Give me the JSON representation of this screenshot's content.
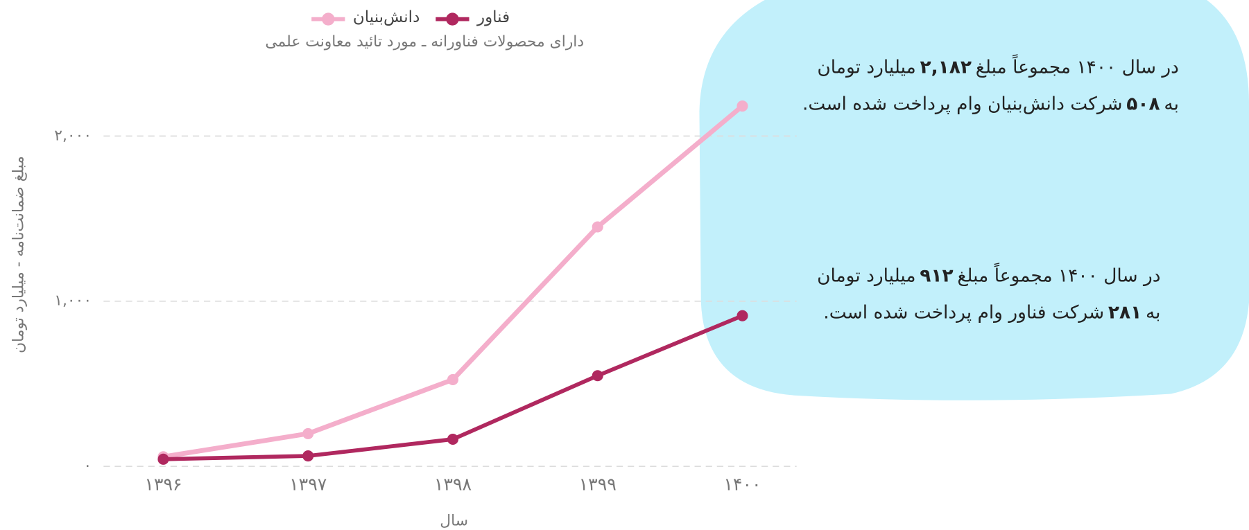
{
  "chart_data": {
    "type": "line",
    "subtitle": "دارای محصولات فناورانه ـ مورد تائید معاونت علمی",
    "xlabel": "سال",
    "ylabel": "مبلغ ضمانت‌نامه - میلیارد تومان",
    "categories": [
      "۱۳۹۶",
      "۱۳۹۷",
      "۱۳۹۸",
      "۱۳۹۹",
      "۱۴۰۰"
    ],
    "series": [
      {
        "name": "فناور",
        "color": "#b0285f",
        "values": [
          43,
          63,
          164,
          549,
          912
        ]
      },
      {
        "name": "دانش‌بنیان",
        "color": "#f4aecb",
        "values": [
          58,
          198,
          525,
          1450,
          2182
        ]
      }
    ],
    "ylim": [
      0,
      2200
    ],
    "yticks": [
      {
        "value": 0,
        "label": "۰"
      },
      {
        "value": 1000,
        "label": "۱,۰۰۰"
      },
      {
        "value": 2000,
        "label": "۲,۰۰۰"
      }
    ],
    "grid": true,
    "annotations": [
      {
        "lines": [
          {
            "before": "در سال ۱۴۰۰ مجموعاً مبلغ",
            "number": "۲,۱۸۲",
            "after": "میلیارد تومان"
          },
          {
            "before": "به",
            "number": "۵۰۸",
            "after": "شرکت دانش‌بنیان وام پرداخت شده است."
          }
        ]
      },
      {
        "lines": [
          {
            "before": "در سال ۱۴۰۰ مجموعاً مبلغ",
            "number": "۹۱۲",
            "after": "میلیارد تومان"
          },
          {
            "before": "به",
            "number": "۲۸۱",
            "after": "شرکت فناور وام پرداخت شده است."
          }
        ]
      }
    ]
  }
}
